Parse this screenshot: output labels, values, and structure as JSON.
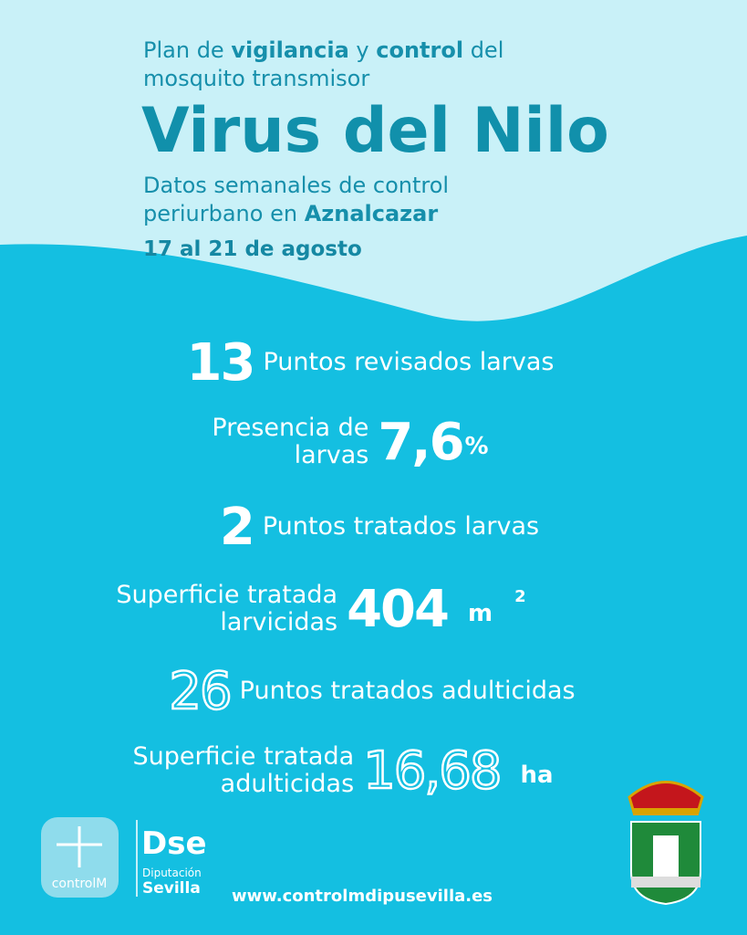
{
  "header": {
    "intro": [
      "Plan de ",
      "vigilancia",
      " y ",
      "control",
      " del",
      "mosquito transmisor"
    ],
    "title": "Virus del Nilo",
    "subtitle": [
      "Datos semanales de control",
      "periurbano en ",
      "Aznalcazar"
    ],
    "date": "17 al 21 de agosto"
  },
  "stats": [
    {
      "value": "13",
      "label": [
        "Puntos revisados larvas"
      ]
    },
    {
      "value": "7,6",
      "unit": "%",
      "label": [
        "Presencia de",
        "larvas"
      ]
    },
    {
      "value": "2",
      "label": [
        "Puntos tratados larvas"
      ]
    },
    {
      "value": "404",
      "unit": "m",
      "unit_sup": "2",
      "label": [
        "Superficie tratada",
        "larvicidas"
      ]
    },
    {
      "value": "26",
      "label": [
        "Puntos tratados adulticidas"
      ]
    },
    {
      "value": "16,68",
      "unit": "ha",
      "label": [
        "Superficie tratada",
        "adulticidas"
      ]
    }
  ],
  "footer": {
    "logo1": "controlM",
    "logo2": "Dse",
    "logo2_sub": "Diputación",
    "logo2_name": "Sevilla",
    "url": "www.controlmdipusevilla.es"
  }
}
